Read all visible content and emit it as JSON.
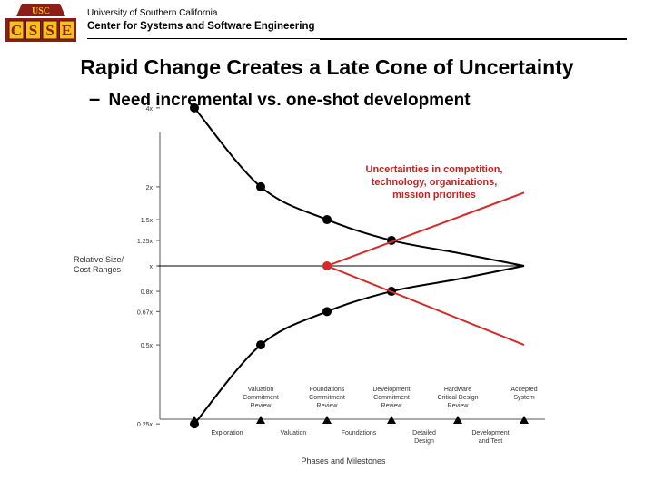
{
  "header": {
    "logo": {
      "top_text": "USC",
      "letters": [
        "C",
        "S",
        "S",
        "E"
      ]
    },
    "university": "University of Southern California",
    "center": "Center for Systems and Software Engineering"
  },
  "slide": {
    "title": "Rapid Change Creates a Late Cone of Uncertainty",
    "subtitle_dash": "–",
    "subtitle": "Need incremental vs. one-shot development"
  },
  "chart_data": {
    "type": "line",
    "ylabel": "Relative Size/ Cost Ranges",
    "xlabel": "Phases and Milestones",
    "y_ticks": [
      "4x",
      "2x",
      "1.5x",
      "1.25x",
      "x",
      "0.8x",
      "0.67x",
      "0.5x",
      "0.25x"
    ],
    "y_tick_values": [
      4,
      2,
      1.5,
      1.25,
      1,
      0.8,
      0.67,
      0.5,
      0.25
    ],
    "y_scale": "log",
    "milestones": [
      {
        "label": [
          "Valuation",
          "Commitment",
          "Review"
        ]
      },
      {
        "label": [
          "Foundations",
          "Commitment",
          "Review"
        ]
      },
      {
        "label": [
          "Development",
          "Commitment",
          "Review"
        ]
      },
      {
        "label": [
          "Hardware",
          "Critical Design",
          "Review"
        ]
      },
      {
        "label": [
          "Accepted",
          "System"
        ]
      }
    ],
    "phases": [
      {
        "label": [
          "Exploration"
        ]
      },
      {
        "label": [
          "Valuation"
        ]
      },
      {
        "label": [
          "Foundations"
        ]
      },
      {
        "label": [
          "Detailed",
          "Design"
        ]
      },
      {
        "label": [
          "Development",
          "and Test"
        ]
      }
    ],
    "series": [
      {
        "color": "#000000",
        "x": [
          0,
          1,
          2,
          3,
          4,
          5
        ],
        "y": [
          4,
          2,
          1.5,
          1.25,
          1.12,
          1
        ]
      },
      {
        "color": "#000000",
        "x": [
          0,
          1,
          2,
          3,
          4,
          5
        ],
        "y": [
          0.25,
          0.5,
          0.67,
          0.8,
          0.89,
          1
        ]
      },
      {
        "color": "#d42a2a",
        "x": [
          2,
          5.1
        ],
        "y": [
          1,
          1.9
        ]
      },
      {
        "color": "#d42a2a",
        "x": [
          2,
          5.1
        ],
        "y": [
          1,
          0.5
        ]
      }
    ],
    "annotation": {
      "lines": [
        "Uncertainties in competition,",
        "technology, organizations,",
        "mission priorities"
      ],
      "color": "#c62020"
    }
  }
}
